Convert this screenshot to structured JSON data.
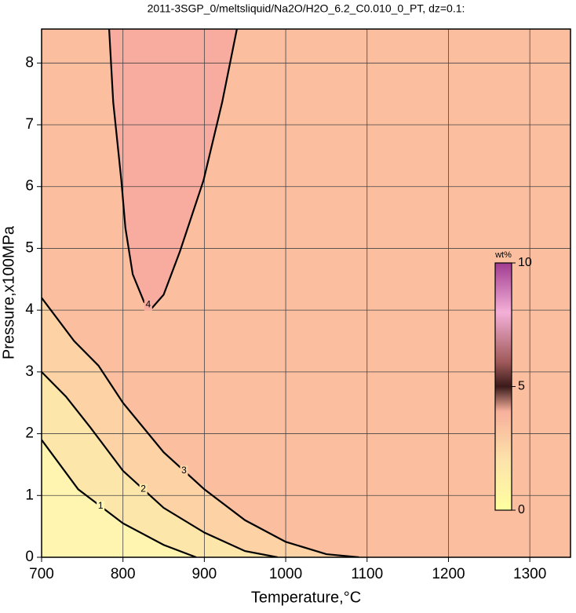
{
  "chart_data": {
    "type": "contour",
    "title": "2011-3SGP_0/meltsliquid/Na2O/H2O_6.2_C0.010_0_PT, dz=0.1:",
    "xlabel": "Temperature,°C",
    "ylabel": "Pressure,x100MPa",
    "xlim": [
      700,
      1350
    ],
    "ylim": [
      0,
      8.55
    ],
    "xticks": [
      700,
      800,
      900,
      1000,
      1100,
      1200,
      1300
    ],
    "yticks": [
      0,
      1,
      2,
      3,
      4,
      5,
      6,
      7,
      8
    ],
    "grid": true,
    "background": "#fbbfa0",
    "contours": [
      {
        "level": 3,
        "fill": "#fdd3a6",
        "x": [
          700,
          740,
          770,
          800,
          850,
          900,
          950,
          1000,
          1050,
          1090
        ],
        "y": [
          4.2,
          3.5,
          3.1,
          2.5,
          1.7,
          1.1,
          0.6,
          0.25,
          0.05,
          0
        ]
      },
      {
        "level": 2,
        "fill": "#fde6aa",
        "x": [
          700,
          730,
          760,
          800,
          850,
          900,
          950,
          990
        ],
        "y": [
          3.0,
          2.6,
          2.1,
          1.4,
          0.8,
          0.4,
          0.1,
          0
        ]
      },
      {
        "level": 1,
        "fill": "#fff5b0",
        "x": [
          700,
          745,
          800,
          850,
          890
        ],
        "y": [
          1.9,
          1.1,
          0.55,
          0.2,
          0
        ]
      },
      {
        "level": 4,
        "fill": "#f8aca0",
        "x": [
          783,
          788,
          798,
          803,
          812,
          826,
          836,
          850,
          870,
          899,
          922,
          940
        ],
        "y": [
          8.55,
          7.37,
          6.1,
          5.33,
          4.58,
          4.13,
          4.04,
          4.25,
          4.95,
          6.1,
          7.37,
          8.55
        ]
      }
    ],
    "colorbar": {
      "label": "wt%",
      "lim": [
        0,
        10
      ],
      "ticks": [
        0,
        5,
        10
      ],
      "stops": [
        [
          0,
          "#ffffa0"
        ],
        [
          2,
          "#fde3aa"
        ],
        [
          4,
          "#f7b09c"
        ],
        [
          5,
          "#3a1a1a"
        ],
        [
          6,
          "#a05a5a"
        ],
        [
          8,
          "#f4b0d8"
        ],
        [
          10,
          "#a03c90"
        ]
      ]
    }
  }
}
